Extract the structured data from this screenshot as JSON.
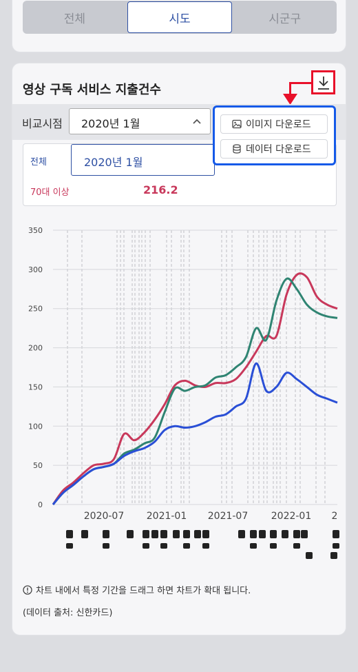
{
  "region_tabs": [
    "전체",
    "시도",
    "시군구"
  ],
  "card": {
    "title": "영상 구독 서비스 지출건수",
    "compare_label": "비교시점",
    "compare_value": "2020년 1월"
  },
  "download_menu": {
    "image_label": "이미지 다운로드",
    "data_label": "데이터 다운로드"
  },
  "info": {
    "all_label": "전체",
    "selected_period": "2020년 1월",
    "age_label": "70대 이상",
    "age_value": "216.2"
  },
  "icons": [
    "download-icon",
    "chevron-up-icon",
    "image-icon",
    "database-icon",
    "info-circle-icon"
  ],
  "colors": {
    "primary": "#2d4fa3",
    "red_series": "#c8385b",
    "green_series": "#2f8472",
    "blue_series": "#2a4fd6",
    "highlight": "#e8102a",
    "popup_border": "#1459e8"
  },
  "chart_data": {
    "type": "line",
    "yticks": [
      "0",
      "50",
      "100",
      "150",
      "200",
      "250",
      "300",
      "350"
    ],
    "xticks": [
      "2020-07",
      "2021-01",
      "2021-07",
      "2022-01",
      "2"
    ],
    "ylim": [
      0,
      350
    ],
    "grid": "horizontal",
    "x": [
      "2020-01",
      "2020-02",
      "2020-03",
      "2020-04",
      "2020-05",
      "2020-06",
      "2020-07",
      "2020-08",
      "2020-09",
      "2020-10",
      "2020-11",
      "2020-12",
      "2021-01",
      "2021-02",
      "2021-03",
      "2021-04",
      "2021-05",
      "2021-06",
      "2021-07",
      "2021-08",
      "2021-09",
      "2021-10",
      "2021-11",
      "2021-12",
      "2022-01",
      "2022-02",
      "2022-03",
      "2022-04",
      "2022-05"
    ],
    "series": [
      {
        "color": "#c8385b",
        "values": [
          0,
          18,
          28,
          40,
          50,
          52,
          58,
          90,
          82,
          92,
          108,
          128,
          152,
          158,
          152,
          150,
          155,
          155,
          160,
          175,
          195,
          215,
          215,
          268,
          293,
          290,
          265,
          255,
          250
        ]
      },
      {
        "color": "#2f8472",
        "values": [
          0,
          15,
          25,
          36,
          45,
          48,
          52,
          65,
          70,
          78,
          85,
          118,
          148,
          145,
          150,
          152,
          162,
          165,
          175,
          188,
          225,
          210,
          260,
          288,
          275,
          255,
          245,
          240,
          238
        ]
      },
      {
        "color": "#2a4fd6",
        "values": [
          0,
          15,
          25,
          36,
          45,
          48,
          52,
          62,
          68,
          72,
          80,
          95,
          100,
          98,
          100,
          105,
          112,
          115,
          125,
          135,
          180,
          145,
          150,
          168,
          160,
          150,
          140,
          135,
          130
        ]
      }
    ]
  },
  "footer": {
    "note": "차트 내에서 특정 기간을 드래그 하면 차트가 확대 됩니다.",
    "source": "(데이터 출처: 신한카드)"
  }
}
